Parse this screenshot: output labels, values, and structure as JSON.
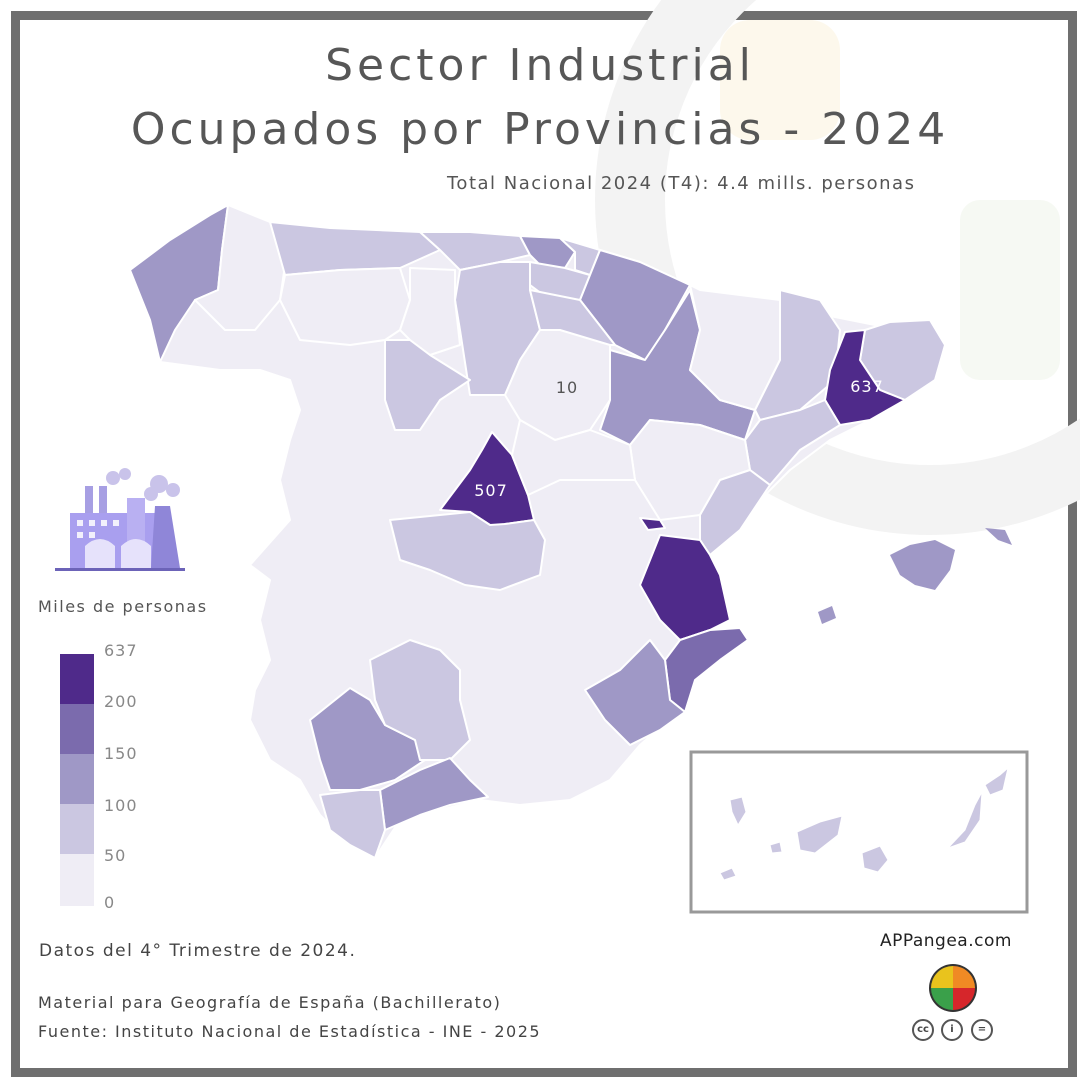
{
  "title_line1": "Sector Industrial",
  "title_line2": "Ocupados por Provincias - 2024",
  "subtitle": "Total Nacional 2024 (T4): 4.4 mills. personas",
  "legend": {
    "title": "Miles de personas",
    "ticks": [
      "637",
      "200",
      "150",
      "100",
      "50",
      "0"
    ],
    "colors": [
      "#4f2a8a",
      "#7b6bad",
      "#9f98c6",
      "#cbc7e1",
      "#efedf5"
    ]
  },
  "map_labels": {
    "barcelona": "637",
    "madrid": "507",
    "soria": "10"
  },
  "notes": {
    "period": "Datos del 4° Trimestre de 2024.",
    "material": "Material para Geografía de España (Bachillerato)",
    "source": "Fuente: Instituto Nacional de Estadística - INE - 2025"
  },
  "brand": {
    "site": "APPangea.com",
    "logo": "puzzle-globe-logo",
    "license_icons": [
      "cc-icon",
      "by-icon",
      "nd-icon"
    ]
  }
}
